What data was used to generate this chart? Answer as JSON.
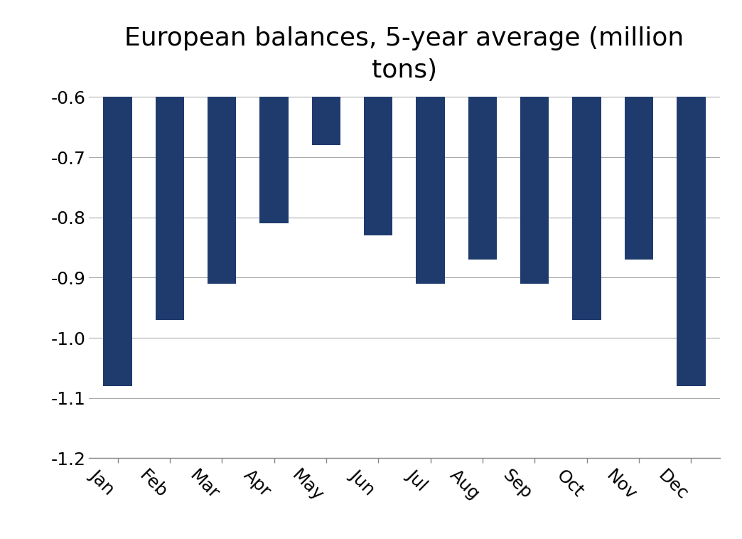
{
  "title": "European balances, 5-year average (million\ntons)",
  "categories": [
    "Jan",
    "Feb",
    "Mar",
    "Apr",
    "May",
    "Jun",
    "Jul",
    "Aug",
    "Sep",
    "Oct",
    "Nov",
    "Dec"
  ],
  "values": [
    -1.08,
    -0.97,
    -0.91,
    -0.81,
    -0.68,
    -0.83,
    -0.91,
    -0.87,
    -0.91,
    -0.97,
    -0.87,
    -1.08
  ],
  "bar_color": "#1F3B6E",
  "ylim": [
    -1.2,
    -0.6
  ],
  "yticks": [
    -1.2,
    -1.1,
    -1.0,
    -0.9,
    -0.8,
    -0.7,
    -0.6
  ],
  "title_fontsize": 26,
  "tick_fontsize": 18,
  "background_color": "#ffffff",
  "grid_color": "#AAAAAA",
  "bar_width": 0.55,
  "xlabel_rotation": -45
}
